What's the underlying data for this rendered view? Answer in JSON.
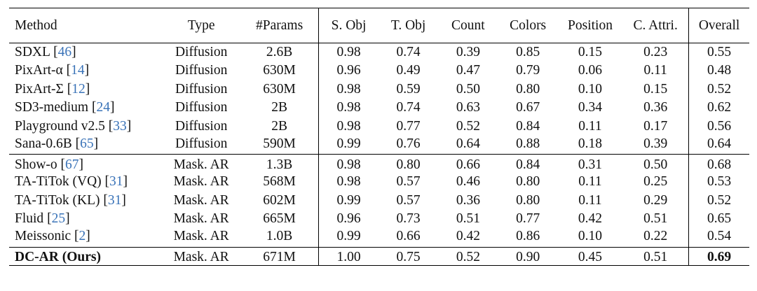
{
  "table": {
    "headers": [
      "Method",
      "Type",
      "#Params",
      "S. Obj",
      "T. Obj",
      "Count",
      "Colors",
      "Position",
      "C. Attri.",
      "Overall"
    ],
    "groups": [
      {
        "rows": [
          {
            "method": "SDXL",
            "cite": "46",
            "type": "Diffusion",
            "params": "2.6B",
            "scores": [
              "0.98",
              "0.74",
              "0.39",
              "0.85",
              "0.15",
              "0.23"
            ],
            "overall": "0.55"
          },
          {
            "method": "PixArt-α",
            "cite": "14",
            "type": "Diffusion",
            "params": "630M",
            "scores": [
              "0.96",
              "0.49",
              "0.47",
              "0.79",
              "0.06",
              "0.11"
            ],
            "overall": "0.48"
          },
          {
            "method": "PixArt-Σ",
            "cite": "12",
            "type": "Diffusion",
            "params": "630M",
            "scores": [
              "0.98",
              "0.59",
              "0.50",
              "0.80",
              "0.10",
              "0.15"
            ],
            "overall": "0.52"
          },
          {
            "method": "SD3-medium",
            "cite": "24",
            "type": "Diffusion",
            "params": "2B",
            "scores": [
              "0.98",
              "0.74",
              "0.63",
              "0.67",
              "0.34",
              "0.36"
            ],
            "overall": "0.62"
          },
          {
            "method": "Playground v2.5",
            "cite": "33",
            "type": "Diffusion",
            "params": "2B",
            "scores": [
              "0.98",
              "0.77",
              "0.52",
              "0.84",
              "0.11",
              "0.17"
            ],
            "overall": "0.56"
          },
          {
            "method": "Sana-0.6B",
            "cite": "65",
            "type": "Diffusion",
            "params": "590M",
            "scores": [
              "0.99",
              "0.76",
              "0.64",
              "0.88",
              "0.18",
              "0.39"
            ],
            "overall": "0.64"
          }
        ]
      },
      {
        "rows": [
          {
            "method": "Show-o",
            "cite": "67",
            "type": "Mask. AR",
            "params": "1.3B",
            "scores": [
              "0.98",
              "0.80",
              "0.66",
              "0.84",
              "0.31",
              "0.50"
            ],
            "overall": "0.68"
          },
          {
            "method": "TA-TiTok (VQ)",
            "cite": "31",
            "type": "Mask. AR",
            "params": "568M",
            "scores": [
              "0.98",
              "0.57",
              "0.46",
              "0.80",
              "0.11",
              "0.25"
            ],
            "overall": "0.53"
          },
          {
            "method": "TA-TiTok (KL)",
            "cite": "31",
            "type": "Mask. AR",
            "params": "602M",
            "scores": [
              "0.99",
              "0.57",
              "0.36",
              "0.80",
              "0.11",
              "0.29"
            ],
            "overall": "0.52"
          },
          {
            "method": "Fluid",
            "cite": "25",
            "type": "Mask. AR",
            "params": "665M",
            "scores": [
              "0.96",
              "0.73",
              "0.51",
              "0.77",
              "0.42",
              "0.51"
            ],
            "overall": "0.65"
          },
          {
            "method": "Meissonic",
            "cite": "2",
            "type": "Mask. AR",
            "params": "1.0B",
            "scores": [
              "0.99",
              "0.66",
              "0.42",
              "0.86",
              "0.10",
              "0.22"
            ],
            "overall": "0.54"
          }
        ]
      },
      {
        "rows": [
          {
            "method": "DC-AR (Ours)",
            "cite": "",
            "type": "Mask. AR",
            "params": "671M",
            "scores": [
              "1.00",
              "0.75",
              "0.52",
              "0.90",
              "0.45",
              "0.51"
            ],
            "overall": "0.69",
            "bold_method": true,
            "bold_overall": true
          }
        ]
      }
    ]
  },
  "colors": {
    "text": "#111111",
    "citation": "#3a73b8",
    "rule": "#000000"
  }
}
